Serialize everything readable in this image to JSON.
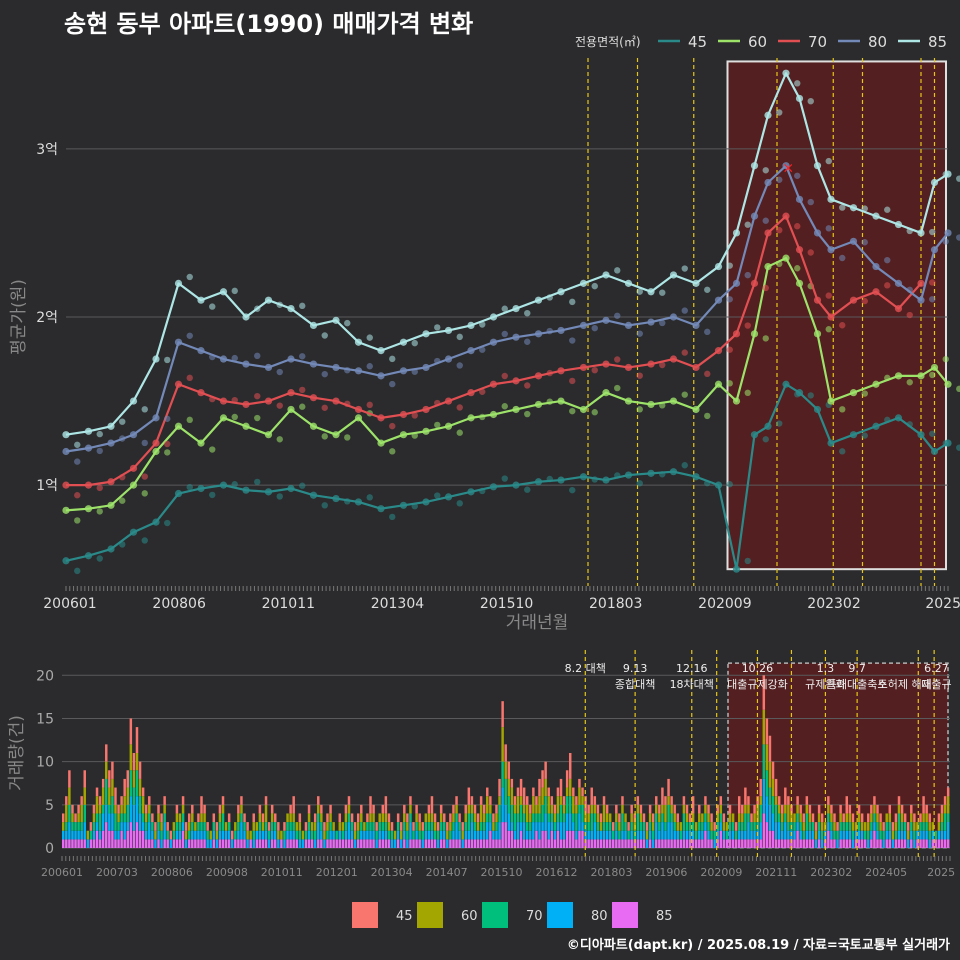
{
  "title": "송현 동부 아파트(1990) 매매가격 변화",
  "credit": "©디아파트(dapt.kr) / 2025.08.19 / 자료=국토교통부 실거래가",
  "colors": {
    "bg": "#2b2b2d",
    "grid": "#5a5a5c",
    "text": "#dddddd",
    "axis_title": "#888888",
    "policy_line": "#e6c619",
    "highlight": "#5a1e1e",
    "line_45": "#2a8a8a",
    "line_60": "#9de36a",
    "line_70": "#e24f52",
    "line_80": "#7389b8",
    "line_85": "#aee6e6",
    "bar_45": "#f8766d",
    "bar_60": "#a3a500",
    "bar_70": "#00bf7d",
    "bar_80": "#00b0f6",
    "bar_85": "#e76bf3"
  },
  "chart_data": [
    {
      "type": "line",
      "ylabel": "평균가(원)",
      "xlabel": "거래년월",
      "legend_title": "전용면적(㎡)",
      "legend_position": "top-right",
      "x_ticks": [
        "200601",
        "200806",
        "201011",
        "201304",
        "201510",
        "201803",
        "202009",
        "202302",
        "2025"
      ],
      "y_ticks": [
        "1억",
        "2억",
        "3억"
      ],
      "ylim": [
        0.4,
        3.6
      ],
      "xlim": [
        2006.0,
        2025.6
      ],
      "grid": true,
      "highlight_range": [
        2020.7,
        2025.6
      ],
      "policy_lines": [
        2017.6,
        2018.7,
        2019.95,
        2021.8,
        2023.05,
        2023.7,
        2025.0,
        2025.3
      ],
      "series": [
        {
          "name": "45",
          "x": [
            2006.0,
            2006.5,
            2007.0,
            2007.5,
            2008.0,
            2008.5,
            2009.0,
            2009.5,
            2010.0,
            2010.5,
            2011.0,
            2011.5,
            2012.0,
            2012.5,
            2013.0,
            2013.5,
            2014.0,
            2014.5,
            2015.0,
            2015.5,
            2016.0,
            2016.5,
            2017.0,
            2017.5,
            2018.0,
            2018.5,
            2019.0,
            2019.5,
            2020.0,
            2020.5,
            2020.9,
            2021.3,
            2021.6,
            2022.0,
            2022.3,
            2022.7,
            2023.0,
            2023.5,
            2024.0,
            2024.5,
            2025.0,
            2025.3,
            2025.6
          ],
          "values": [
            0.55,
            0.58,
            0.62,
            0.72,
            0.78,
            0.95,
            0.98,
            1.0,
            0.97,
            0.96,
            0.98,
            0.94,
            0.92,
            0.9,
            0.86,
            0.88,
            0.9,
            0.93,
            0.96,
            0.99,
            1.0,
            1.02,
            1.03,
            1.05,
            1.03,
            1.06,
            1.07,
            1.08,
            1.05,
            1.0,
            0.5,
            1.3,
            1.35,
            1.6,
            1.55,
            1.45,
            1.25,
            1.3,
            1.35,
            1.4,
            1.3,
            1.2,
            1.25
          ]
        },
        {
          "name": "60",
          "x": [
            2006.0,
            2006.5,
            2007.0,
            2007.5,
            2008.0,
            2008.5,
            2009.0,
            2009.5,
            2010.0,
            2010.5,
            2011.0,
            2011.5,
            2012.0,
            2012.5,
            2013.0,
            2013.5,
            2014.0,
            2014.5,
            2015.0,
            2015.5,
            2016.0,
            2016.5,
            2017.0,
            2017.5,
            2018.0,
            2018.5,
            2019.0,
            2019.5,
            2020.0,
            2020.5,
            2020.9,
            2021.3,
            2021.6,
            2022.0,
            2022.3,
            2022.7,
            2023.0,
            2023.5,
            2024.0,
            2024.5,
            2025.0,
            2025.3,
            2025.6
          ],
          "values": [
            0.85,
            0.86,
            0.88,
            1.0,
            1.2,
            1.35,
            1.25,
            1.4,
            1.35,
            1.3,
            1.45,
            1.35,
            1.3,
            1.4,
            1.25,
            1.3,
            1.32,
            1.35,
            1.4,
            1.42,
            1.45,
            1.48,
            1.5,
            1.45,
            1.55,
            1.5,
            1.48,
            1.5,
            1.45,
            1.6,
            1.5,
            1.9,
            2.3,
            2.35,
            2.2,
            1.9,
            1.5,
            1.55,
            1.6,
            1.65,
            1.65,
            1.7,
            1.6
          ]
        },
        {
          "name": "70",
          "x": [
            2006.0,
            2006.5,
            2007.0,
            2007.5,
            2008.0,
            2008.5,
            2009.0,
            2009.5,
            2010.0,
            2010.5,
            2011.0,
            2011.5,
            2012.0,
            2012.5,
            2013.0,
            2013.5,
            2014.0,
            2014.5,
            2015.0,
            2015.5,
            2016.0,
            2016.5,
            2017.0,
            2017.5,
            2018.0,
            2018.5,
            2019.0,
            2019.5,
            2020.0,
            2020.5,
            2020.9,
            2021.3,
            2021.6,
            2022.0,
            2022.3,
            2022.7,
            2023.0,
            2023.5,
            2024.0,
            2024.5,
            2025.0
          ],
          "values": [
            1.0,
            1.0,
            1.02,
            1.1,
            1.25,
            1.6,
            1.55,
            1.5,
            1.48,
            1.5,
            1.55,
            1.52,
            1.5,
            1.45,
            1.4,
            1.42,
            1.45,
            1.5,
            1.55,
            1.6,
            1.62,
            1.65,
            1.68,
            1.7,
            1.72,
            1.7,
            1.72,
            1.75,
            1.7,
            1.8,
            1.9,
            2.2,
            2.5,
            2.6,
            2.4,
            2.1,
            2.0,
            2.1,
            2.15,
            2.05,
            2.2
          ]
        },
        {
          "name": "80",
          "x": [
            2006.0,
            2006.5,
            2007.0,
            2007.5,
            2008.0,
            2008.5,
            2009.0,
            2009.5,
            2010.0,
            2010.5,
            2011.0,
            2011.5,
            2012.0,
            2012.5,
            2013.0,
            2013.5,
            2014.0,
            2014.5,
            2015.0,
            2015.5,
            2016.0,
            2016.5,
            2017.0,
            2017.5,
            2018.0,
            2018.5,
            2019.0,
            2019.5,
            2020.0,
            2020.5,
            2020.9,
            2021.3,
            2021.6,
            2022.0,
            2022.3,
            2022.7,
            2023.0,
            2023.5,
            2024.0,
            2024.5,
            2025.0,
            2025.3,
            2025.6
          ],
          "values": [
            1.2,
            1.22,
            1.25,
            1.3,
            1.4,
            1.85,
            1.8,
            1.75,
            1.72,
            1.7,
            1.75,
            1.72,
            1.7,
            1.68,
            1.65,
            1.68,
            1.7,
            1.75,
            1.8,
            1.85,
            1.88,
            1.9,
            1.92,
            1.95,
            1.98,
            1.95,
            1.97,
            2.0,
            1.95,
            2.1,
            2.2,
            2.6,
            2.8,
            2.9,
            2.7,
            2.5,
            2.4,
            2.45,
            2.3,
            2.2,
            2.1,
            2.4,
            2.5
          ]
        },
        {
          "name": "85",
          "x": [
            2006.0,
            2006.5,
            2007.0,
            2007.5,
            2008.0,
            2008.5,
            2009.0,
            2009.5,
            2010.0,
            2010.5,
            2011.0,
            2011.5,
            2012.0,
            2012.5,
            2013.0,
            2013.5,
            2014.0,
            2014.5,
            2015.0,
            2015.5,
            2016.0,
            2016.5,
            2017.0,
            2017.5,
            2018.0,
            2018.5,
            2019.0,
            2019.5,
            2020.0,
            2020.5,
            2020.9,
            2021.3,
            2021.6,
            2022.0,
            2022.3,
            2022.7,
            2023.0,
            2023.5,
            2024.0,
            2024.5,
            2025.0,
            2025.3,
            2025.6
          ],
          "values": [
            1.3,
            1.32,
            1.35,
            1.5,
            1.75,
            2.2,
            2.1,
            2.15,
            2.0,
            2.1,
            2.05,
            1.95,
            1.98,
            1.85,
            1.8,
            1.85,
            1.9,
            1.92,
            1.95,
            2.0,
            2.05,
            2.1,
            2.15,
            2.2,
            2.25,
            2.2,
            2.15,
            2.25,
            2.2,
            2.3,
            2.5,
            2.9,
            3.2,
            3.45,
            3.3,
            2.9,
            2.7,
            2.65,
            2.6,
            2.55,
            2.5,
            2.8,
            2.85
          ]
        }
      ],
      "annotations": [
        {
          "type": "marker",
          "symbol": "×",
          "x": 2022.05,
          "y": 2.89
        }
      ]
    },
    {
      "type": "bar",
      "stacked": true,
      "ylabel": "거래량(건)",
      "x_ticks": [
        "200601",
        "200703",
        "200806",
        "200908",
        "201011",
        "201201",
        "201304",
        "201407",
        "201510",
        "201612",
        "201803",
        "201906",
        "202009",
        "202111",
        "202302",
        "202405",
        "2025"
      ],
      "y_ticks": [
        0,
        5,
        10,
        15,
        20
      ],
      "ylim": [
        0,
        22
      ],
      "xlim": [
        2006.0,
        2025.6
      ],
      "grid": true,
      "highlight_range": [
        2020.7,
        2025.6
      ],
      "legend_position": "bottom",
      "legend": [
        "45",
        "60",
        "70",
        "80",
        "85"
      ],
      "policy_lines": [
        2017.55,
        2018.65,
        2019.9,
        2020.45,
        2021.35,
        2022.1,
        2022.85,
        2023.55,
        2024.9,
        2025.25
      ],
      "policy_labels": [
        {
          "x": 2017.55,
          "lines": [
            "8.2 대책"
          ]
        },
        {
          "x": 2018.65,
          "lines": [
            "9.13",
            "종합대책"
          ]
        },
        {
          "x": 2019.9,
          "lines": [
            "12.16",
            "18차대책"
          ]
        },
        {
          "x": 2021.35,
          "lines": [
            "10.26",
            "대출규제강화"
          ]
        },
        {
          "x": 2022.85,
          "lines": [
            "1.3",
            "규제완화"
          ]
        },
        {
          "x": 2023.55,
          "lines": [
            "9.7",
            "특례대출축소"
          ]
        },
        {
          "x": 2024.6,
          "lines": [
            "",
            "토허제 해제"
          ]
        },
        {
          "x": 2025.3,
          "lines": [
            "6.27",
            "대출규"
          ]
        }
      ],
      "months_per_bar": 1,
      "totals": [
        4,
        6,
        9,
        5,
        4,
        5,
        6,
        9,
        2,
        3,
        5,
        7,
        6,
        8,
        12,
        9,
        10,
        7,
        5,
        6,
        8,
        9,
        15,
        11,
        14,
        10,
        7,
        5,
        6,
        4,
        3,
        5,
        4,
        6,
        3,
        2,
        3,
        5,
        4,
        6,
        3,
        4,
        5,
        3,
        4,
        6,
        5,
        3,
        2,
        4,
        3,
        5,
        6,
        3,
        4,
        2,
        3,
        5,
        6,
        4,
        3,
        2,
        4,
        3,
        5,
        4,
        6,
        3,
        5,
        4,
        3,
        2,
        3,
        4,
        5,
        6,
        3,
        4,
        2,
        3,
        5,
        3,
        4,
        6,
        5,
        3,
        4,
        5,
        3,
        2,
        4,
        3,
        5,
        6,
        4,
        3,
        4,
        5,
        3,
        4,
        6,
        5,
        3,
        4,
        5,
        6,
        4,
        3,
        2,
        4,
        3,
        5,
        4,
        6,
        3,
        5,
        4,
        3,
        4,
        5,
        6,
        4,
        3,
        5,
        4,
        3,
        4,
        5,
        6,
        4,
        3,
        5,
        7,
        6,
        5,
        4,
        6,
        5,
        7,
        6,
        4,
        5,
        8,
        17,
        12,
        10,
        8,
        6,
        7,
        8,
        7,
        6,
        5,
        7,
        6,
        8,
        9,
        10,
        7,
        6,
        5,
        7,
        8,
        6,
        9,
        11,
        7,
        6,
        8,
        7,
        6,
        5,
        7,
        6,
        5,
        4,
        6,
        5,
        4,
        3,
        5,
        4,
        6,
        4,
        3,
        5,
        4,
        6,
        5,
        4,
        3,
        5,
        4,
        6,
        5,
        7,
        6,
        8,
        6,
        5,
        4,
        3,
        6,
        5,
        4,
        6,
        3,
        5,
        4,
        6,
        5,
        4,
        3,
        5,
        6,
        4,
        3,
        5,
        4,
        3,
        6,
        5,
        7,
        6,
        4,
        5,
        6,
        8,
        20,
        15,
        13,
        10,
        8,
        6,
        5,
        7,
        6,
        5,
        4,
        6,
        5,
        4,
        6,
        5,
        4,
        3,
        5,
        4,
        3,
        6,
        5,
        4,
        3,
        5,
        4,
        6,
        5,
        4,
        3,
        5,
        4,
        3,
        4,
        5,
        6,
        5,
        4,
        3,
        4,
        5,
        3,
        4,
        6,
        5,
        4,
        3,
        5,
        4,
        3,
        4,
        6,
        5,
        4,
        3,
        2,
        4,
        5,
        6,
        7
      ]
    }
  ]
}
